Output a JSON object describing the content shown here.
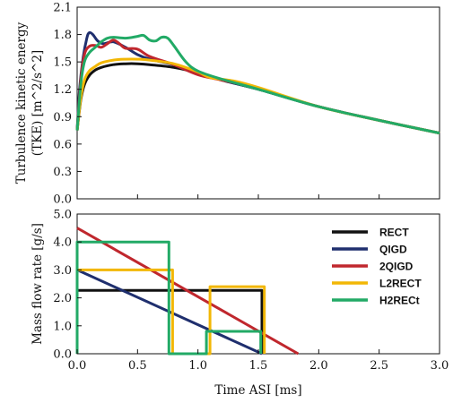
{
  "chart_data": [
    {
      "type": "line",
      "title": "",
      "xlabel": "",
      "ylabel_line1": "Turbulence kinetic energy",
      "ylabel_line2": "(TKE) [m^2/s^2]",
      "xlim": [
        0,
        3.0
      ],
      "ylim": [
        0,
        2.1
      ],
      "yticks": [
        "0.0",
        "0.3",
        "0.6",
        "0.9",
        "1.2",
        "1.5",
        "1.8",
        "2.1"
      ],
      "xticks": [
        "",
        "",
        "",
        "",
        "",
        "",
        ""
      ],
      "grid": false,
      "series": [
        {
          "name": "RECT",
          "color": "#111111",
          "x": [
            0,
            0.03,
            0.06,
            0.1,
            0.15,
            0.2,
            0.3,
            0.4,
            0.5,
            0.6,
            0.8,
            1.0,
            1.2,
            1.5,
            2.0,
            2.5,
            3.0
          ],
          "y": [
            0.75,
            1.08,
            1.25,
            1.35,
            1.41,
            1.44,
            1.47,
            1.48,
            1.48,
            1.47,
            1.44,
            1.38,
            1.3,
            1.2,
            1.01,
            0.86,
            0.72
          ]
        },
        {
          "name": "QIGD",
          "color": "#1f2f6e",
          "x": [
            0,
            0.02,
            0.05,
            0.08,
            0.1,
            0.13,
            0.17,
            0.22,
            0.3,
            0.4,
            0.5,
            0.6,
            0.8,
            1.0,
            1.2,
            1.5,
            2.0,
            2.5,
            3.0
          ],
          "y": [
            0.75,
            1.2,
            1.55,
            1.76,
            1.82,
            1.8,
            1.73,
            1.7,
            1.72,
            1.66,
            1.58,
            1.53,
            1.47,
            1.38,
            1.3,
            1.2,
            1.01,
            0.86,
            0.72
          ]
        },
        {
          "name": "2QIGD",
          "color": "#c0272d",
          "x": [
            0,
            0.03,
            0.06,
            0.1,
            0.15,
            0.2,
            0.25,
            0.3,
            0.35,
            0.4,
            0.5,
            0.6,
            0.8,
            1.0,
            1.2,
            1.5,
            2.0,
            2.5,
            3.0
          ],
          "y": [
            0.75,
            1.3,
            1.58,
            1.67,
            1.68,
            1.66,
            1.7,
            1.74,
            1.7,
            1.65,
            1.64,
            1.56,
            1.47,
            1.36,
            1.3,
            1.21,
            1.01,
            0.86,
            0.72
          ]
        },
        {
          "name": "L2RECT",
          "color": "#f2b705",
          "x": [
            0,
            0.03,
            0.06,
            0.1,
            0.15,
            0.2,
            0.3,
            0.4,
            0.5,
            0.6,
            0.8,
            1.0,
            1.1,
            1.3,
            1.5,
            2.0,
            2.5,
            3.0
          ],
          "y": [
            0.75,
            1.1,
            1.3,
            1.4,
            1.45,
            1.49,
            1.52,
            1.53,
            1.53,
            1.52,
            1.48,
            1.39,
            1.33,
            1.29,
            1.22,
            1.01,
            0.86,
            0.72
          ]
        },
        {
          "name": "H2RECt",
          "color": "#22aa66",
          "x": [
            0,
            0.03,
            0.06,
            0.1,
            0.15,
            0.2,
            0.25,
            0.3,
            0.4,
            0.5,
            0.55,
            0.6,
            0.65,
            0.7,
            0.75,
            0.8,
            0.9,
            1.0,
            1.2,
            1.5,
            2.0,
            2.5,
            3.0
          ],
          "y": [
            0.75,
            1.25,
            1.5,
            1.6,
            1.66,
            1.72,
            1.76,
            1.77,
            1.76,
            1.78,
            1.79,
            1.74,
            1.73,
            1.77,
            1.76,
            1.68,
            1.5,
            1.4,
            1.31,
            1.2,
            1.01,
            0.86,
            0.72
          ]
        }
      ]
    },
    {
      "type": "line",
      "title": "",
      "xlabel": "Time ASI [ms]",
      "ylabel": "Mass flow rate [g/s]",
      "xlim": [
        0,
        3.0
      ],
      "ylim": [
        0,
        5.0
      ],
      "xticks": [
        "0.0",
        "0.5",
        "1.0",
        "1.5",
        "2.0",
        "2.5",
        "3.0"
      ],
      "yticks": [
        "0.0",
        "1.0",
        "2.0",
        "3.0",
        "4.0",
        "5.0"
      ],
      "grid": false,
      "legend": "top-right",
      "series": [
        {
          "name": "RECT",
          "color": "#111111",
          "x": [
            0,
            0,
            1.53,
            1.53
          ],
          "y": [
            0,
            2.27,
            2.27,
            0
          ]
        },
        {
          "name": "QIGD",
          "color": "#1f2f6e",
          "x": [
            0,
            1.53
          ],
          "y": [
            3.0,
            0
          ]
        },
        {
          "name": "2QIGD",
          "color": "#c0272d",
          "x": [
            0,
            1.83
          ],
          "y": [
            4.5,
            0
          ]
        },
        {
          "name": "L2RECT",
          "color": "#f2b705",
          "x": [
            0,
            0,
            0.79,
            0.79,
            1.1,
            1.1,
            1.55,
            1.55
          ],
          "y": [
            0,
            3.0,
            3.0,
            0,
            0,
            2.4,
            2.4,
            0
          ]
        },
        {
          "name": "H2RECt",
          "color": "#22aa66",
          "x": [
            0,
            0,
            0.76,
            0.76,
            1.07,
            1.07,
            1.52,
            1.52
          ],
          "y": [
            0,
            4.0,
            4.0,
            0,
            0,
            0.8,
            0.8,
            0
          ]
        }
      ]
    }
  ]
}
